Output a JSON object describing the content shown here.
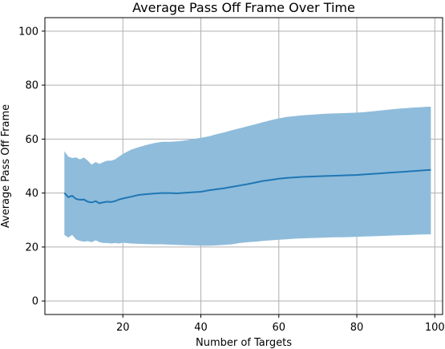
{
  "chart_data": {
    "type": "line",
    "title": "Average Pass Off Frame Over Time",
    "xlabel": "Number of Targets",
    "ylabel": "Average Pass Off Frame",
    "xlim": [
      0,
      102
    ],
    "ylim": [
      -5,
      105
    ],
    "xticks": [
      20,
      40,
      60,
      80,
      100
    ],
    "yticks": [
      0,
      20,
      40,
      60,
      80,
      100
    ],
    "grid": true,
    "colors": {
      "line": "#1f77b4",
      "band": "#8fbcdb"
    },
    "x": [
      5,
      6,
      7,
      8,
      9,
      10,
      11,
      12,
      13,
      14,
      15,
      16,
      17,
      18,
      19,
      20,
      22,
      24,
      26,
      28,
      30,
      32,
      34,
      36,
      38,
      40,
      42,
      44,
      46,
      48,
      50,
      52,
      54,
      56,
      58,
      60,
      62,
      64,
      66,
      68,
      70,
      72,
      74,
      76,
      78,
      80,
      82,
      84,
      86,
      88,
      90,
      92,
      94,
      96,
      98,
      99
    ],
    "series": [
      {
        "values": [
          40.0,
          38.5,
          39.0,
          37.8,
          37.5,
          37.6,
          36.8,
          36.5,
          37.0,
          36.2,
          36.6,
          36.8,
          36.7,
          37.0,
          37.6,
          38.0,
          38.6,
          39.3,
          39.6,
          39.8,
          40.0,
          40.0,
          39.9,
          40.1,
          40.3,
          40.5,
          41.0,
          41.4,
          41.8,
          42.3,
          42.8,
          43.3,
          43.9,
          44.5,
          44.9,
          45.3,
          45.6,
          45.8,
          46.0,
          46.1,
          46.2,
          46.3,
          46.4,
          46.5,
          46.6,
          46.7,
          46.9,
          47.1,
          47.3,
          47.5,
          47.7,
          47.9,
          48.1,
          48.3,
          48.5,
          48.6
        ],
        "upper": [
          55.5,
          53.5,
          53.0,
          53.2,
          52.5,
          53.2,
          52.0,
          50.5,
          51.5,
          50.8,
          51.5,
          52.0,
          52.0,
          52.5,
          53.5,
          54.5,
          56.0,
          57.0,
          57.8,
          58.5,
          59.0,
          59.0,
          59.2,
          59.5,
          60.0,
          60.5,
          61.0,
          61.8,
          62.5,
          63.3,
          64.0,
          64.8,
          65.5,
          66.3,
          67.0,
          67.7,
          68.2,
          68.5,
          68.8,
          69.0,
          69.2,
          69.4,
          69.5,
          69.6,
          69.7,
          69.8,
          70.0,
          70.3,
          70.6,
          70.9,
          71.2,
          71.4,
          71.6,
          71.8,
          72.0,
          72.0
        ],
        "lower": [
          24.5,
          23.5,
          24.5,
          22.8,
          22.3,
          22.0,
          22.2,
          21.8,
          22.5,
          21.8,
          21.5,
          21.5,
          21.3,
          21.5,
          21.3,
          21.6,
          21.3,
          21.2,
          21.1,
          21.0,
          21.0,
          20.9,
          20.8,
          20.7,
          20.6,
          20.5,
          20.5,
          20.6,
          20.8,
          21.0,
          21.5,
          21.8,
          22.0,
          22.3,
          22.5,
          22.7,
          22.9,
          23.1,
          23.2,
          23.3,
          23.4,
          23.5,
          23.6,
          23.6,
          23.7,
          23.8,
          23.9,
          24.0,
          24.1,
          24.2,
          24.3,
          24.4,
          24.5,
          24.6,
          24.7,
          24.7
        ]
      }
    ]
  }
}
